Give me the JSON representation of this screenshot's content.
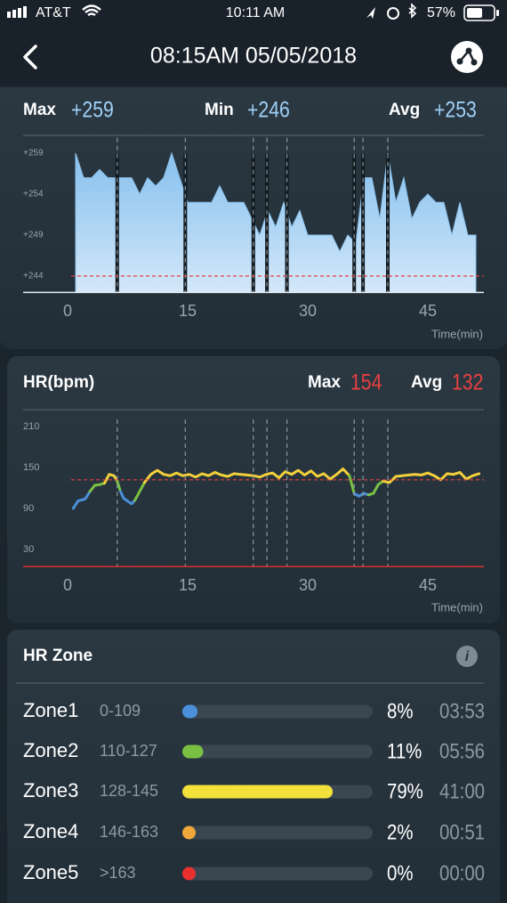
{
  "status": {
    "carrier": "AT&T",
    "time": "10:11 AM",
    "battery": "57%"
  },
  "header": {
    "title": "08:15AM 05/05/2018"
  },
  "chart_data": [
    {
      "type": "area",
      "stats": [
        {
          "label": "Max",
          "value": "+259"
        },
        {
          "label": "Min",
          "value": "+246"
        },
        {
          "label": "Avg",
          "value": "+253"
        }
      ],
      "x": [
        1,
        2,
        3,
        4,
        5,
        6,
        7,
        8,
        9,
        10,
        11,
        12,
        13,
        14,
        15,
        16,
        17,
        18,
        19,
        20,
        21,
        22,
        23,
        24,
        25,
        26,
        27,
        28,
        29,
        30,
        31,
        32,
        33,
        34,
        35,
        36,
        37,
        38,
        39,
        40,
        41,
        42,
        43,
        44,
        45,
        46,
        47,
        48,
        49,
        50,
        51
      ],
      "values": [
        259,
        256,
        256,
        257,
        256,
        256,
        256,
        256,
        254,
        256,
        255,
        256,
        259,
        256,
        253,
        253,
        253,
        253,
        255,
        253,
        253,
        253,
        251,
        249,
        252,
        250,
        253,
        250,
        252,
        249,
        249,
        249,
        249,
        247,
        249,
        248,
        256,
        256,
        251,
        259,
        253,
        256,
        251,
        253,
        254,
        253,
        253,
        249,
        253,
        249,
        249
      ],
      "color": "#8cc4ef",
      "xlim": [
        0,
        52
      ],
      "ylim": [
        242,
        260
      ],
      "xticks": [
        0,
        15,
        30,
        45
      ],
      "yticks": [
        {
          "value": 259,
          "label": "+259"
        },
        {
          "value": 254,
          "label": "+254"
        },
        {
          "value": 249,
          "label": "+249"
        },
        {
          "value": 244,
          "label": "+244"
        }
      ],
      "x_label": "Time(min)",
      "ref_line": 244,
      "pause_markers": [
        6.2,
        14.7,
        23.2,
        24.9,
        27.4,
        35.8,
        36.9,
        40.0
      ]
    },
    {
      "type": "line",
      "title": "HR(bpm)",
      "stats": [
        {
          "label": "Max",
          "value": "154"
        },
        {
          "label": "Avg",
          "value": "132"
        }
      ],
      "series": [
        {
          "color": "#4a90d9",
          "x": [
            0.7,
            1.3,
            2.2,
            2.8
          ],
          "values": [
            90,
            101,
            104,
            115
          ]
        },
        {
          "color": "#7ac143",
          "x": [
            2.8,
            3.4,
            4.0,
            4.6
          ],
          "values": [
            115,
            124,
            125,
            127
          ]
        },
        {
          "color": "#f2d03b",
          "x": [
            4.6,
            5.2,
            5.8,
            6.2
          ],
          "values": [
            127,
            140,
            138,
            130
          ]
        },
        {
          "color": "#7ac143",
          "x": [
            6.2,
            6.6
          ],
          "values": [
            130,
            115
          ]
        },
        {
          "color": "#4a90d9",
          "x": [
            6.6,
            7.0,
            7.6,
            8.0,
            8.4
          ],
          "values": [
            115,
            105,
            100,
            97,
            102
          ]
        },
        {
          "color": "#7ac143",
          "x": [
            8.4,
            9.0,
            9.6
          ],
          "values": [
            102,
            115,
            128
          ]
        },
        {
          "color": "#f2d03b",
          "x": [
            9.6,
            10.4,
            11.2,
            12,
            12.8,
            13.6,
            14.4,
            15.2,
            16,
            16.8,
            17.6,
            18.4,
            19.2,
            20,
            20.8,
            21.6,
            22.4,
            23.2,
            24,
            24.8,
            25.6,
            26.4,
            27.2,
            28,
            28.8,
            29.6,
            30.4,
            31.2,
            32,
            32.8,
            33.6,
            34.4,
            35.2
          ],
          "values": [
            128,
            140,
            146,
            140,
            138,
            142,
            138,
            140,
            136,
            141,
            138,
            143,
            139,
            137,
            141,
            140,
            139,
            138,
            136,
            140,
            142,
            135,
            144,
            140,
            146,
            139,
            145,
            137,
            141,
            133,
            140,
            148,
            138
          ]
        },
        {
          "color": "#7ac143",
          "x": [
            35.2,
            35.8
          ],
          "values": [
            138,
            112
          ]
        },
        {
          "color": "#4a90d9",
          "x": [
            35.8,
            36.4,
            37,
            37.6
          ],
          "values": [
            112,
            108,
            112,
            110
          ]
        },
        {
          "color": "#7ac143",
          "x": [
            37.6,
            38.2,
            38.8,
            39.4
          ],
          "values": [
            110,
            112,
            125,
            130
          ]
        },
        {
          "color": "#f2d03b",
          "x": [
            39.4,
            40.2,
            41,
            41.8,
            42.6,
            43.4,
            44.2,
            45,
            45.8,
            46.6,
            47.4,
            48.2,
            49,
            49.8,
            50.6,
            51.4
          ],
          "values": [
            130,
            128,
            137,
            138,
            139,
            140,
            139,
            142,
            138,
            132,
            141,
            140,
            143,
            133,
            138,
            141
          ]
        }
      ],
      "xlim": [
        0,
        52
      ],
      "ylim": [
        5,
        210
      ],
      "xticks": [
        0,
        15,
        30,
        45
      ],
      "yticks": [
        210,
        150,
        90,
        30
      ],
      "x_label": "Time(min)",
      "ref_line": 132,
      "pause_markers": [
        6.2,
        14.7,
        23.2,
        24.9,
        27.4,
        35.8,
        36.9,
        40.0
      ]
    }
  ],
  "hr_zone": {
    "title": "HR Zone",
    "zones": [
      "Zone1",
      "Zone2",
      "Zone3",
      "Zone4",
      "Zone5"
    ],
    "ranges": [
      "0-109",
      "110-127",
      "128-145",
      "146-163",
      ">163"
    ],
    "values": [
      8,
      11,
      79,
      2,
      0
    ],
    "value_labels": [
      "8%",
      "11%",
      "79%",
      "2%",
      "0%"
    ],
    "times": [
      "03:53",
      "05:56",
      "41:00",
      "00:51",
      "00:00"
    ],
    "colors": [
      "#4a90d9",
      "#7ac143",
      "#f2e13b",
      "#f0a73a",
      "#e8302f"
    ]
  }
}
